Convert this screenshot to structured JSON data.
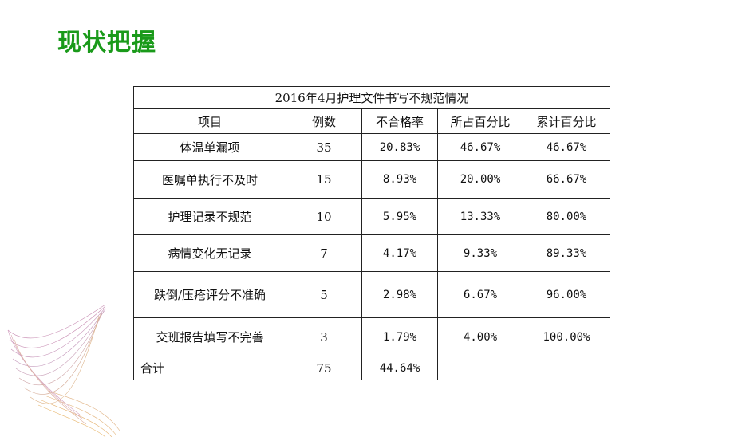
{
  "page": {
    "title": "现状把握"
  },
  "table": {
    "caption": "2016年4月护理文件书写不规范情况",
    "headers": [
      "项目",
      "例数",
      "不合格率",
      "所占百分比",
      "累计百分比"
    ],
    "rows": [
      [
        "体温单漏项",
        "35",
        "20.83%",
        "46.67%",
        "46.67%"
      ],
      [
        "医嘱单执行不及时",
        "15",
        "8.93%",
        "20.00%",
        "66.67%"
      ],
      [
        "护理记录不规范",
        "10",
        "5.95%",
        "13.33%",
        "80.00%"
      ],
      [
        "病情变化无记录",
        "7",
        "4.17%",
        "9.33%",
        "89.33%"
      ],
      [
        "跌倒/压疮评分不准确",
        "5",
        "2.98%",
        "6.67%",
        "96.00%"
      ],
      [
        "交班报告填写不完善",
        "3",
        "1.79%",
        "4.00%",
        "100.00%"
      ]
    ],
    "total": [
      "合计",
      "75",
      "44.64%",
      "",
      ""
    ]
  },
  "colors": {
    "title": "#1a9a1a",
    "border": "#222222"
  }
}
